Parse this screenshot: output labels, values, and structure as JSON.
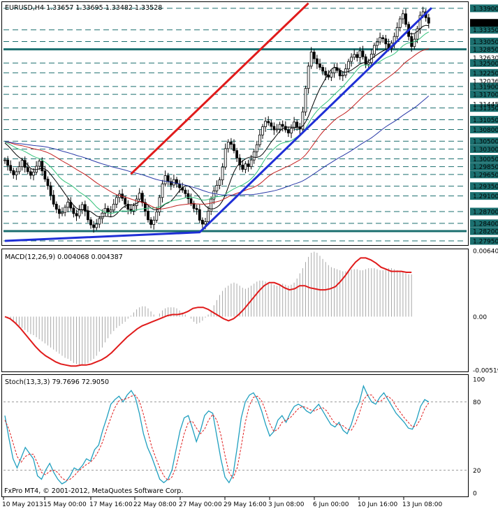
{
  "window": {
    "title": "EURUSD,H4  1.33657 1.33695 1.33482 1.33528",
    "copyright": "FxPro MT4, © 2001-2012, MetaQuotes Software Corp."
  },
  "colors": {
    "background": "#ffffff",
    "grid": "#1b6f6f",
    "candles": "#000000",
    "support_line": "#1f2fd6",
    "resistance_line": "#e01b1b",
    "sma_fast": "#000000",
    "sma_mid": "#33c27a",
    "sma_slow": "#c21f1f",
    "sma_long": "#2a3aa8",
    "macd_hist": "#a8a8a8",
    "macd_signal": "#e01b1b",
    "stoch_main": "#1f9fbf",
    "stoch_signal": "#e01b1b",
    "bid_tag": "#000000"
  },
  "chart_data": [
    {
      "type": "candlestick",
      "title": "EURUSD,H4",
      "ohlc_readout": [
        "1.33657",
        "1.33695",
        "1.33482",
        "1.33528"
      ],
      "current_price": "1.33528",
      "ylim": [
        1.27843,
        1.34059
      ],
      "x_ticks": [
        "10 May 2013",
        "15 May 00:00",
        "17 May 16:00",
        "22 May 08:00",
        "27 May 00:00",
        "29 May 16:00",
        "3 Jun 08:00",
        "6 Jun 00:00",
        "10 Jun 16:00",
        "13 Jun 08:00"
      ],
      "price_levels": [
        "1.33900",
        "1.33350",
        "1.33050",
        "1.32850",
        "1.32500",
        "1.32250",
        "1.31900",
        "1.31700",
        "1.31350",
        "1.31050",
        "1.30800",
        "1.30500",
        "1.30300",
        "1.30050",
        "1.29850",
        "1.29650",
        "1.29350",
        "1.29100",
        "1.28700",
        "1.28400",
        "1.28200",
        "1.27950"
      ],
      "highlighted_levels": [
        "1.32850",
        "1.28200"
      ],
      "minor_tick_labels": [
        "1.32630",
        "1.32036",
        "1.31445"
      ],
      "trendlines": [
        {
          "name": "support",
          "points": [
            [
              0,
              1.2795
            ],
            [
              68,
              1.2817
            ],
            [
              149,
              1.3391
            ]
          ]
        },
        {
          "name": "resistance",
          "points": [
            [
              44,
              1.2966
            ],
            [
              106,
              1.3403
            ]
          ]
        }
      ],
      "closes": [
        1.3002,
        1.2988,
        1.2975,
        1.2964,
        1.2972,
        1.2985,
        1.3001,
        1.2983,
        1.2972,
        1.2963,
        1.2971,
        1.2986,
        1.2999,
        1.2974,
        1.2953,
        1.2936,
        1.2912,
        1.2889,
        1.2876,
        1.2865,
        1.2868,
        1.2881,
        1.2894,
        1.2879,
        1.2865,
        1.2859,
        1.2874,
        1.2888,
        1.2871,
        1.2849,
        1.2836,
        1.2829,
        1.2838,
        1.2852,
        1.2866,
        1.2878,
        1.2869,
        1.2874,
        1.2889,
        1.2906,
        1.2915,
        1.2904,
        1.2889,
        1.2876,
        1.2871,
        1.2885,
        1.2902,
        1.2917,
        1.2893,
        1.2871,
        1.2849,
        1.2837,
        1.2848,
        1.2869,
        1.2906,
        1.2941,
        1.2962,
        1.2947,
        1.2938,
        1.2952,
        1.2941,
        1.2931,
        1.2925,
        1.2916,
        1.2903,
        1.2891,
        1.2878,
        1.2875,
        1.2848,
        1.2838,
        1.2844,
        1.2871,
        1.2902,
        1.2923,
        1.2937,
        1.2951,
        1.2984,
        1.3031,
        1.3048,
        1.3042,
        1.3026,
        1.3007,
        1.2989,
        1.2978,
        1.2992,
        1.2985,
        1.3002,
        1.3023,
        1.3041,
        1.3066,
        1.3087,
        1.3101,
        1.3097,
        1.3088,
        1.3079,
        1.3081,
        1.3093,
        1.3088,
        1.3079,
        1.3071,
        1.3083,
        1.3099,
        1.3087,
        1.3081,
        1.3125,
        1.3185,
        1.3242,
        1.3278,
        1.3261,
        1.3248,
        1.3239,
        1.3229,
        1.3219,
        1.3214,
        1.3225,
        1.3238,
        1.3231,
        1.3217,
        1.3219,
        1.3235,
        1.3254,
        1.3265,
        1.3272,
        1.3264,
        1.3281,
        1.3266,
        1.3247,
        1.3251,
        1.3273,
        1.3295,
        1.3304,
        1.3315,
        1.3312,
        1.3299,
        1.3287,
        1.3301,
        1.3318,
        1.3341,
        1.3363,
        1.3376,
        1.3349,
        1.3318,
        1.3292,
        1.3311,
        1.3338,
        1.3372,
        1.3381,
        1.3366,
        1.3352
      ]
    },
    {
      "type": "bar",
      "title": "MACD(12,26,9) 0.004068 0.004387",
      "ylim": [
        -0.00519,
        0.006404
      ],
      "y_ticks": [
        "0.006404",
        "0.00",
        "-0.00519"
      ],
      "zero_line": 0,
      "histogram": [
        0.0,
        -0.0001,
        -0.0003,
        -0.0005,
        -0.0007,
        -0.0009,
        -0.0011,
        -0.0013,
        -0.0015,
        -0.0017,
        -0.0018,
        -0.002,
        -0.0022,
        -0.0024,
        -0.0026,
        -0.0028,
        -0.003,
        -0.0032,
        -0.0034,
        -0.0036,
        -0.0038,
        -0.004,
        -0.0041,
        -0.0043,
        -0.0045,
        -0.0046,
        -0.0047,
        -0.0047,
        -0.0046,
        -0.0045,
        -0.0043,
        -0.0041,
        -0.0038,
        -0.0034,
        -0.003,
        -0.0025,
        -0.0021,
        -0.0017,
        -0.0014,
        -0.0011,
        -0.0009,
        -0.0007,
        -0.0005,
        -0.0002,
        0.0001,
        0.0004,
        0.0007,
        0.0009,
        0.001,
        0.001,
        0.0008,
        0.0005,
        0.0002,
        0.0,
        0.0003,
        0.0006,
        0.0008,
        0.0009,
        0.0009,
        0.0009,
        0.0008,
        0.0006,
        0.0004,
        0.0002,
        0.0,
        -0.0002,
        -0.0005,
        -0.0007,
        -0.0006,
        -0.0004,
        -0.0001,
        0.0002,
        0.0006,
        0.0011,
        0.0016,
        0.0021,
        0.0025,
        0.0028,
        0.003,
        0.0032,
        0.0033,
        0.0032,
        0.003,
        0.0028,
        0.0027,
        0.0028,
        0.003,
        0.0032,
        0.0034,
        0.0035,
        0.0035,
        0.0034,
        0.0033,
        0.0032,
        0.0031,
        0.003,
        0.0031,
        0.0032,
        0.0031,
        0.003,
        0.0031,
        0.0033,
        0.0037,
        0.0042,
        0.0047,
        0.0053,
        0.0058,
        0.0062,
        0.0063,
        0.0062,
        0.0059,
        0.0056,
        0.0053,
        0.005,
        0.0048,
        0.0047,
        0.0046,
        0.0045,
        0.0044,
        0.0044,
        0.0045,
        0.0046,
        0.0046,
        0.0046,
        0.0045,
        0.0045,
        0.0046,
        0.0047,
        0.0047,
        0.0047,
        0.0046,
        0.0045,
        0.0045,
        0.0046,
        0.0047,
        0.0047,
        0.0046,
        0.0045,
        0.0044,
        0.0043,
        0.0042,
        0.0041,
        0.0041
      ],
      "signal": [
        0.0,
        -0.0002,
        -0.0006,
        -0.0011,
        -0.0017,
        -0.0023,
        -0.0029,
        -0.0034,
        -0.0038,
        -0.0041,
        -0.0044,
        -0.0046,
        -0.0047,
        -0.0048,
        -0.0048,
        -0.0047,
        -0.0047,
        -0.0046,
        -0.0044,
        -0.0042,
        -0.0039,
        -0.0035,
        -0.003,
        -0.0025,
        -0.002,
        -0.0016,
        -0.0012,
        -0.0009,
        -0.0007,
        -0.0005,
        -0.0003,
        -0.0001,
        0.0001,
        0.0002,
        0.0002,
        0.0003,
        0.0005,
        0.0008,
        0.0009,
        0.0009,
        0.0007,
        0.0004,
        0.0001,
        -0.0002,
        -0.0004,
        -0.0002,
        0.0002,
        0.0007,
        0.0013,
        0.0019,
        0.0025,
        0.003,
        0.0033,
        0.0033,
        0.0031,
        0.0028,
        0.0026,
        0.0027,
        0.003,
        0.003,
        0.0028,
        0.0027,
        0.0026,
        0.0026,
        0.0027,
        0.0029,
        0.0034,
        0.004,
        0.0047,
        0.0053,
        0.0057,
        0.0057,
        0.0055,
        0.0052,
        0.0048,
        0.0046,
        0.0044,
        0.0044,
        0.0044,
        0.0043,
        0.0043
      ]
    },
    {
      "type": "line",
      "title": "Stoch(13,3,3) 79.7696 72.9050",
      "ylim": [
        0,
        100
      ],
      "y_ticks": [
        "100",
        "80",
        "20",
        "0"
      ],
      "levels": [
        80,
        20
      ],
      "series": [
        {
          "name": "%K",
          "values": [
            68,
            48,
            30,
            22,
            31,
            40,
            35,
            30,
            15,
            12,
            20,
            26,
            18,
            12,
            8,
            10,
            15,
            22,
            20,
            24,
            30,
            28,
            38,
            42,
            55,
            66,
            78,
            82,
            85,
            80,
            86,
            90,
            84,
            70,
            52,
            40,
            32,
            22,
            12,
            9,
            12,
            20,
            38,
            55,
            66,
            68,
            57,
            45,
            55,
            68,
            72,
            70,
            50,
            30,
            14,
            9,
            16,
            40,
            66,
            80,
            86,
            88,
            82,
            72,
            60,
            50,
            54,
            64,
            68,
            62,
            70,
            76,
            78,
            76,
            72,
            70,
            74,
            78,
            72,
            66,
            60,
            58,
            62,
            55,
            52,
            60,
            72,
            80,
            94,
            86,
            80,
            78,
            84,
            88,
            82,
            76,
            70,
            66,
            62,
            57,
            56,
            64,
            76,
            82,
            80
          ]
        },
        {
          "name": "%D",
          "values": [
            64,
            56,
            44,
            32,
            27,
            32,
            34,
            34,
            26,
            18,
            16,
            19,
            20,
            18,
            13,
            11,
            12,
            15,
            19,
            22,
            25,
            27,
            31,
            37,
            45,
            56,
            66,
            75,
            81,
            82,
            83,
            85,
            86,
            81,
            69,
            55,
            41,
            31,
            22,
            15,
            11,
            14,
            23,
            38,
            52,
            62,
            63,
            57,
            52,
            56,
            64,
            69,
            64,
            51,
            33,
            18,
            13,
            22,
            41,
            62,
            77,
            84,
            85,
            81,
            72,
            61,
            54,
            56,
            62,
            64,
            66,
            70,
            74,
            76,
            75,
            73,
            72,
            74,
            75,
            72,
            66,
            61,
            60,
            59,
            56,
            55,
            61,
            70,
            82,
            86,
            86,
            81,
            80,
            83,
            85,
            82,
            76,
            71,
            66,
            62,
            58,
            59,
            65,
            74,
            79
          ]
        }
      ]
    }
  ]
}
